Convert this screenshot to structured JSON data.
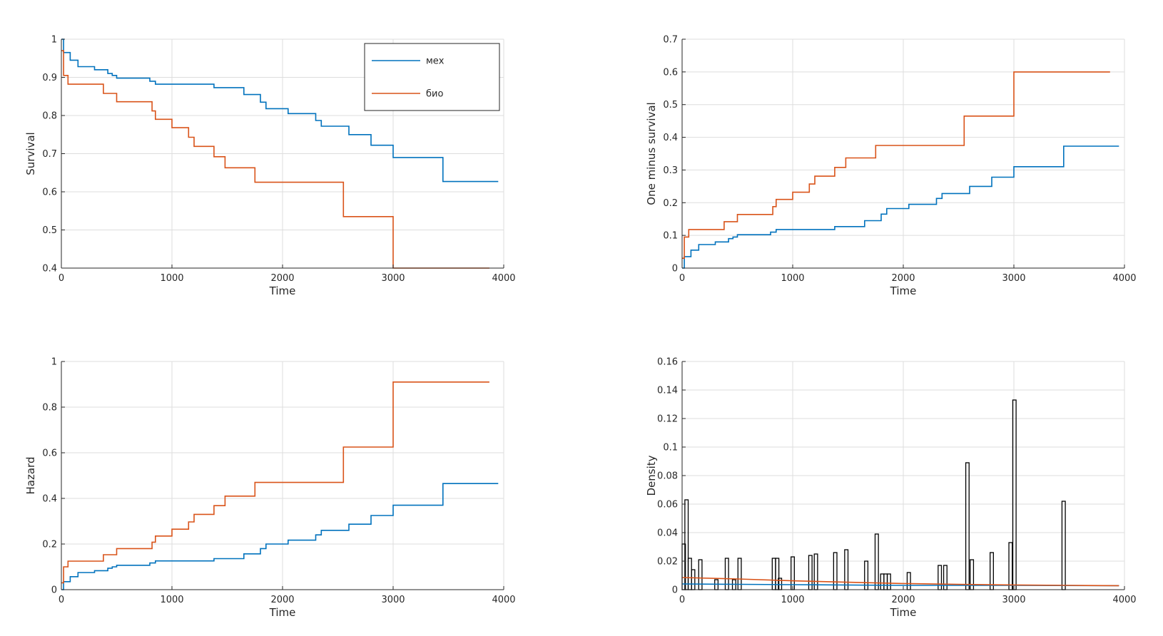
{
  "colors": {
    "mex": "#0072BD",
    "bio": "#D95319",
    "hist": "#000000",
    "grid": "#dddddd",
    "axis": "#262626"
  },
  "chart_data": [
    {
      "id": "survival",
      "type": "line",
      "xlabel": "Time",
      "ylabel": "Survival",
      "xlim": [
        0,
        4000
      ],
      "ylim": [
        0.4,
        1
      ],
      "xticks": [
        0,
        1000,
        2000,
        3000,
        4000
      ],
      "yticks": [
        0.4,
        0.5,
        0.6,
        0.7,
        0.8,
        0.9,
        1
      ],
      "ytick_labels": [
        "0.4",
        "0.5",
        "0.6",
        "0.7",
        "0.8",
        "0.9",
        "1"
      ],
      "grid": true,
      "legend": {
        "placement": "top-right",
        "entries": [
          "мех",
          "био"
        ]
      },
      "series": [
        {
          "name": "мех",
          "color": "#0072BD",
          "x": [
            0,
            20,
            80,
            150,
            300,
            420,
            460,
            500,
            800,
            850,
            1380,
            1650,
            1800,
            1850,
            2050,
            2300,
            2350,
            2600,
            2800,
            3000,
            3450,
            3950
          ],
          "y": [
            1,
            0.965,
            0.945,
            0.928,
            0.92,
            0.91,
            0.905,
            0.898,
            0.89,
            0.882,
            0.873,
            0.855,
            0.835,
            0.818,
            0.805,
            0.787,
            0.772,
            0.75,
            0.722,
            0.69,
            0.627,
            0.627
          ]
        },
        {
          "name": "био",
          "color": "#D95319",
          "x": [
            0,
            20,
            60,
            380,
            500,
            820,
            850,
            1000,
            1150,
            1200,
            1380,
            1480,
            1750,
            2550,
            3000,
            3870
          ],
          "y": [
            0.97,
            0.905,
            0.882,
            0.858,
            0.836,
            0.812,
            0.79,
            0.768,
            0.743,
            0.719,
            0.692,
            0.663,
            0.625,
            0.535,
            0.4,
            0.4
          ]
        }
      ]
    },
    {
      "id": "one-minus-survival",
      "type": "line",
      "xlabel": "Time",
      "ylabel": "One minus survival",
      "xlim": [
        0,
        4000
      ],
      "ylim": [
        0,
        0.7
      ],
      "xticks": [
        0,
        1000,
        2000,
        3000,
        4000
      ],
      "yticks": [
        0,
        0.1,
        0.2,
        0.3,
        0.4,
        0.5,
        0.6,
        0.7
      ],
      "ytick_labels": [
        "0",
        "0.1",
        "0.2",
        "0.3",
        "0.4",
        "0.5",
        "0.6",
        "0.7"
      ],
      "grid": true,
      "series": [
        {
          "name": "мех",
          "color": "#0072BD",
          "x": [
            0,
            20,
            80,
            150,
            300,
            420,
            460,
            500,
            800,
            850,
            1380,
            1650,
            1800,
            1850,
            2050,
            2300,
            2350,
            2600,
            2800,
            3000,
            3450,
            3950
          ],
          "y": [
            0,
            0.035,
            0.055,
            0.072,
            0.08,
            0.09,
            0.095,
            0.102,
            0.11,
            0.118,
            0.127,
            0.145,
            0.165,
            0.182,
            0.195,
            0.213,
            0.228,
            0.25,
            0.278,
            0.31,
            0.373,
            0.373
          ]
        },
        {
          "name": "био",
          "color": "#D95319",
          "x": [
            0,
            20,
            60,
            380,
            500,
            820,
            850,
            1000,
            1150,
            1200,
            1380,
            1480,
            1750,
            2550,
            3000,
            3870
          ],
          "y": [
            0.03,
            0.095,
            0.118,
            0.142,
            0.164,
            0.188,
            0.21,
            0.232,
            0.257,
            0.281,
            0.308,
            0.337,
            0.375,
            0.465,
            0.6,
            0.6
          ]
        }
      ]
    },
    {
      "id": "hazard",
      "type": "line",
      "xlabel": "Time",
      "ylabel": "Hazard",
      "xlim": [
        0,
        4000
      ],
      "ylim": [
        0,
        1
      ],
      "xticks": [
        0,
        1000,
        2000,
        3000,
        4000
      ],
      "yticks": [
        0,
        0.2,
        0.4,
        0.6,
        0.8,
        1
      ],
      "ytick_labels": [
        "0",
        "0.2",
        "0.4",
        "0.6",
        "0.8",
        "1"
      ],
      "grid": true,
      "series": [
        {
          "name": "мех",
          "color": "#0072BD",
          "x": [
            0,
            20,
            80,
            150,
            300,
            420,
            460,
            500,
            800,
            850,
            1380,
            1650,
            1800,
            1850,
            2050,
            2300,
            2350,
            2600,
            2800,
            3000,
            3450,
            3950
          ],
          "y": [
            0,
            0.035,
            0.057,
            0.075,
            0.083,
            0.094,
            0.1,
            0.107,
            0.117,
            0.126,
            0.136,
            0.157,
            0.18,
            0.2,
            0.217,
            0.24,
            0.26,
            0.287,
            0.325,
            0.37,
            0.465,
            0.465
          ]
        },
        {
          "name": "био",
          "color": "#D95319",
          "x": [
            0,
            20,
            60,
            380,
            500,
            820,
            850,
            1000,
            1150,
            1200,
            1380,
            1480,
            1750,
            2550,
            3000,
            3870
          ],
          "y": [
            0.03,
            0.1,
            0.125,
            0.153,
            0.18,
            0.208,
            0.235,
            0.265,
            0.297,
            0.33,
            0.368,
            0.41,
            0.47,
            0.625,
            0.91,
            0.91
          ]
        }
      ]
    },
    {
      "id": "density",
      "type": "bar",
      "xlabel": "Time",
      "ylabel": "Density",
      "xlim": [
        0,
        4000
      ],
      "ylim": [
        0,
        0.16
      ],
      "xticks": [
        0,
        1000,
        2000,
        3000,
        4000
      ],
      "yticks": [
        0,
        0.02,
        0.04,
        0.06,
        0.08,
        0.1,
        0.12,
        0.14,
        0.16
      ],
      "ytick_labels": [
        "0",
        "0.02",
        "0.04",
        "0.06",
        "0.08",
        "0.1",
        "0.12",
        "0.14",
        "0.16"
      ],
      "grid": true,
      "bar_width": 30,
      "bars": {
        "x": [
          15,
          40,
          70,
          100,
          165,
          310,
          405,
          470,
          520,
          830,
          860,
          885,
          1000,
          1160,
          1210,
          1385,
          1485,
          1665,
          1760,
          1810,
          1840,
          1870,
          2050,
          2330,
          2380,
          2580,
          2620,
          2800,
          2970,
          3005,
          3450
        ],
        "y": [
          0.032,
          0.063,
          0.022,
          0.014,
          0.021,
          0.007,
          0.022,
          0.007,
          0.022,
          0.022,
          0.022,
          0.008,
          0.023,
          0.024,
          0.025,
          0.026,
          0.028,
          0.02,
          0.039,
          0.011,
          0.011,
          0.011,
          0.012,
          0.017,
          0.017,
          0.089,
          0.021,
          0.026,
          0.033,
          0.133,
          0.062
        ]
      },
      "series": [
        {
          "name": "мех",
          "color": "#0072BD",
          "x": [
            0,
            1000,
            2000,
            3000,
            3950
          ],
          "y": [
            0.004,
            0.0035,
            0.003,
            0.003,
            0.0028
          ]
        },
        {
          "name": "био",
          "color": "#D95319",
          "x": [
            0,
            500,
            1000,
            1500,
            2000,
            2500,
            3000,
            3500,
            3950
          ],
          "y": [
            0.0085,
            0.0075,
            0.0062,
            0.0052,
            0.0043,
            0.0037,
            0.0033,
            0.003,
            0.0028
          ]
        }
      ]
    }
  ]
}
